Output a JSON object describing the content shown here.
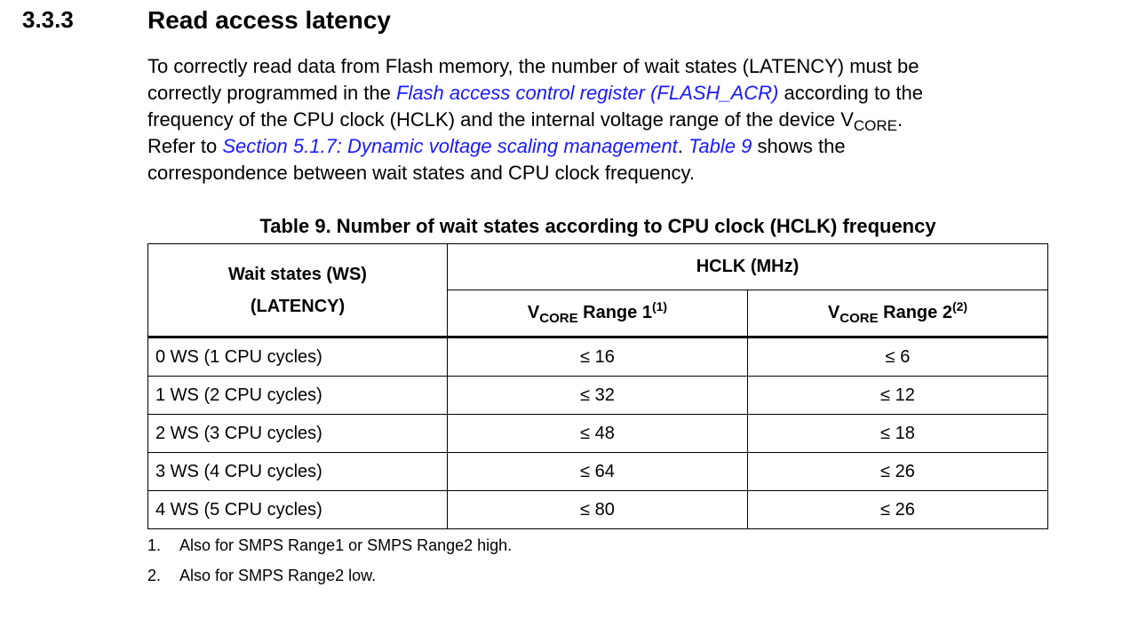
{
  "section": {
    "number": "3.3.3",
    "title": "Read access latency"
  },
  "paragraph": {
    "line1": "To correctly read data from Flash memory, the number of wait states (LATENCY) must be",
    "line2_pre": "correctly programmed in the ",
    "line2_link": "Flash access control register (FLASH_ACR)",
    "line2_post": " according to the",
    "line3_pre": "frequency of the CPU clock (HCLK) and the internal voltage range of the device V",
    "line3_sub": "CORE",
    "line3_post": ".",
    "line4_pre": "Refer to ",
    "line4_link1": "Section 5.1.7: Dynamic voltage scaling management",
    "line4_mid": ". ",
    "line4_link2": "Table 9",
    "line4_post": " shows the",
    "line5": "correspondence between wait states and CPU clock frequency."
  },
  "table": {
    "caption": "Table 9. Number of wait states according to CPU clock (HCLK) frequency",
    "header": {
      "col1_line1": "Wait states (WS)",
      "col1_line2": "(LATENCY)",
      "group": "HCLK (MHz)",
      "range1": {
        "v": "V",
        "sub": "CORE",
        "label": " Range 1",
        "sup": "(1)"
      },
      "range2": {
        "v": "V",
        "sub": "CORE",
        "label": " Range 2",
        "sup": "(2)"
      }
    },
    "rows": [
      [
        "0 WS (1 CPU cycles)",
        "≤ 16",
        "≤ 6"
      ],
      [
        "1 WS (2 CPU cycles)",
        "≤ 32",
        "≤ 12"
      ],
      [
        "2 WS (3 CPU cycles)",
        "≤ 48",
        "≤ 18"
      ],
      [
        "3 WS (4 CPU cycles)",
        "≤ 64",
        "≤ 26"
      ],
      [
        "4 WS (5 CPU cycles)",
        "≤ 80",
        "≤ 26"
      ]
    ]
  },
  "footnotes": [
    {
      "n": "1.",
      "text": "Also for SMPS Range1 or SMPS Range2 high."
    },
    {
      "n": "2.",
      "text": "Also for SMPS Range2 low."
    }
  ],
  "colors": {
    "link": "#1a1aff"
  }
}
